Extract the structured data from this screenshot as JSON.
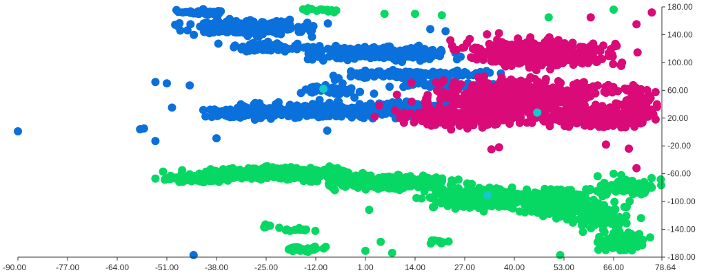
{
  "chart_data": {
    "type": "scatter",
    "title": "",
    "xlabel": "",
    "ylabel": "",
    "xlim": [
      -90,
      78.64
    ],
    "ylim": [
      -180,
      180
    ],
    "y_axis_side": "right",
    "grid": false,
    "x_ticks": [
      "-90.00",
      "-77.00",
      "-64.00",
      "-51.00",
      "-38.00",
      "-25.00",
      "-12.00",
      "1.00",
      "14.00",
      "27.00",
      "40.00",
      "53.00",
      "66.00",
      "78.64"
    ],
    "y_ticks": [
      "180.00",
      "140.00",
      "100.00",
      "60.00",
      "20.00",
      "-20.00",
      "-60.00",
      "-100.00",
      "-140.00",
      "-180.00"
    ],
    "series": [
      {
        "color": "#0a70dc",
        "clusters": [
          {
            "center": [
              -30,
              150
            ],
            "spread": [
              12,
              8
            ],
            "n": 260
          },
          {
            "center": [
              -42,
              172
            ],
            "spread": [
              5,
              3
            ],
            "n": 40
          },
          {
            "center": [
              -25,
              122
            ],
            "spread": [
              8,
              5
            ],
            "n": 100
          },
          {
            "center": [
              5,
              113
            ],
            "spread": [
              14,
              7
            ],
            "n": 280
          },
          {
            "center": [
              12,
              83
            ],
            "spread": [
              14,
              4
            ],
            "n": 160
          },
          {
            "center": [
              22,
              68
            ],
            "spread": [
              10,
              4
            ],
            "n": 80
          },
          {
            "center": [
              -8,
              60
            ],
            "spread": [
              6,
              6
            ],
            "n": 60
          },
          {
            "center": [
              -12,
              30
            ],
            "spread": [
              20,
              8
            ],
            "n": 350
          },
          {
            "center": [
              12,
              35
            ],
            "spread": [
              10,
              6
            ],
            "n": 110
          },
          {
            "center": [
              -32,
              25
            ],
            "spread": [
              6,
              4
            ],
            "n": 70
          }
        ],
        "points": [
          [
            -90,
            1
          ],
          [
            -57,
            5
          ],
          [
            -54,
            72
          ],
          [
            -51,
            70
          ],
          [
            -45,
            67
          ],
          [
            -54,
            -13
          ],
          [
            -58,
            4
          ],
          [
            -38,
            -9
          ],
          [
            -44,
            -177
          ],
          [
            -20,
            158
          ],
          [
            -13,
            137
          ],
          [
            -7,
            75
          ],
          [
            -5,
            70
          ],
          [
            -9,
            2
          ],
          [
            -11,
            46
          ],
          [
            15,
            124
          ],
          [
            22,
            145
          ],
          [
            18,
            148
          ]
        ]
      },
      {
        "color": "#da0a78",
        "clusters": [
          {
            "center": [
              46,
              113
            ],
            "spread": [
              14,
              14
            ],
            "n": 520
          },
          {
            "center": [
              42,
              50
            ],
            "spread": [
              18,
              20
            ],
            "n": 520
          },
          {
            "center": [
              28,
              22
            ],
            "spread": [
              12,
              10
            ],
            "n": 260
          },
          {
            "center": [
              60,
              20
            ],
            "spread": [
              12,
              10
            ],
            "n": 200
          },
          {
            "center": [
              72,
              40
            ],
            "spread": [
              5,
              20
            ],
            "n": 90
          }
        ],
        "points": [
          [
            76,
            172
          ],
          [
            72,
            155
          ],
          [
            60,
            165
          ],
          [
            75,
            22
          ],
          [
            77,
            18
          ],
          [
            72,
            -52
          ],
          [
            68,
            95
          ],
          [
            64,
            -18
          ],
          [
            70,
            -24
          ],
          [
            36,
            -22
          ],
          [
            34,
            -25
          ]
        ]
      },
      {
        "color": "#07d864",
        "clusters": [
          {
            "center": [
              -22,
              -60
            ],
            "spread": [
              16,
              7
            ],
            "n": 420
          },
          {
            "center": [
              -42,
              -68
            ],
            "spread": [
              8,
              3
            ],
            "n": 80
          },
          {
            "center": [
              8,
              -72
            ],
            "spread": [
              13,
              7
            ],
            "n": 300
          },
          {
            "center": [
              32,
              -95
            ],
            "spread": [
              10,
              11
            ],
            "n": 380
          },
          {
            "center": [
              52,
              -102
            ],
            "spread": [
              8,
              15
            ],
            "n": 320
          },
          {
            "center": [
              63,
              -125
            ],
            "spread": [
              5,
              15
            ],
            "n": 100
          },
          {
            "center": [
              68,
              -158
            ],
            "spread": [
              5,
              12
            ],
            "n": 80
          },
          {
            "center": [
              70,
              -80
            ],
            "spread": [
              6,
              10
            ],
            "n": 70
          },
          {
            "center": [
              -15,
              -168
            ],
            "spread": [
              4,
              4
            ],
            "n": 28
          },
          {
            "center": [
              -17,
              -140
            ],
            "spread": [
              3,
              3
            ],
            "n": 12
          },
          {
            "center": [
              -24,
              -135
            ],
            "spread": [
              2,
              3
            ],
            "n": 6
          },
          {
            "center": [
              20,
              -158
            ],
            "spread": [
              3,
              2
            ],
            "n": 12
          },
          {
            "center": [
              -10,
              175
            ],
            "spread": [
              3,
              2
            ],
            "n": 14
          }
        ],
        "points": [
          [
            -14,
            178
          ],
          [
            6,
            170
          ],
          [
            14,
            170
          ],
          [
            21,
            168
          ],
          [
            49,
            165
          ],
          [
            66,
            176
          ],
          [
            -52,
            -57
          ],
          [
            -50,
            -63
          ],
          [
            -54,
            -67
          ],
          [
            5,
            -158
          ],
          [
            1,
            -171
          ],
          [
            74,
            -72
          ],
          [
            76,
            -80
          ],
          [
            66,
            -60
          ],
          [
            68,
            -62
          ],
          [
            52,
            -177
          ],
          [
            8,
            -174
          ],
          [
            2,
            -112
          ]
        ]
      },
      {
        "color": "#14c8cc",
        "clusters": [],
        "points": [
          [
            -10,
            62
          ],
          [
            46,
            28
          ],
          [
            33,
            -91
          ]
        ]
      }
    ]
  }
}
